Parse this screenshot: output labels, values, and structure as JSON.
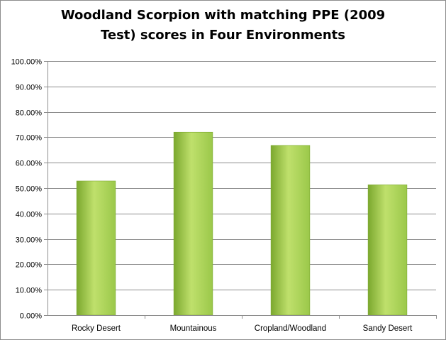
{
  "chart_data": {
    "type": "bar",
    "title_line1": "Woodland Scorpion with matching PPE (2009",
    "title_line2": "Test) scores in Four Environments",
    "categories": [
      "Rocky Desert",
      "Mountainous",
      "Cropland/Woodland",
      "Sandy Desert"
    ],
    "values": [
      52.8,
      72.0,
      66.8,
      51.3
    ],
    "ylim": [
      0,
      100
    ],
    "y_ticks": [
      0,
      10,
      20,
      30,
      40,
      50,
      60,
      70,
      80,
      90,
      100
    ],
    "y_tick_labels": [
      "0.00%",
      "10.00%",
      "20.00%",
      "30.00%",
      "40.00%",
      "50.00%",
      "60.00%",
      "70.00%",
      "80.00%",
      "90.00%",
      "100.00%"
    ],
    "grid": true,
    "legend": "none",
    "bar_color": "#9bc84a",
    "bar_color_light": "#bfe06c",
    "bar_color_dark": "#7ba82e",
    "grid_color": "#8c8c8c"
  }
}
